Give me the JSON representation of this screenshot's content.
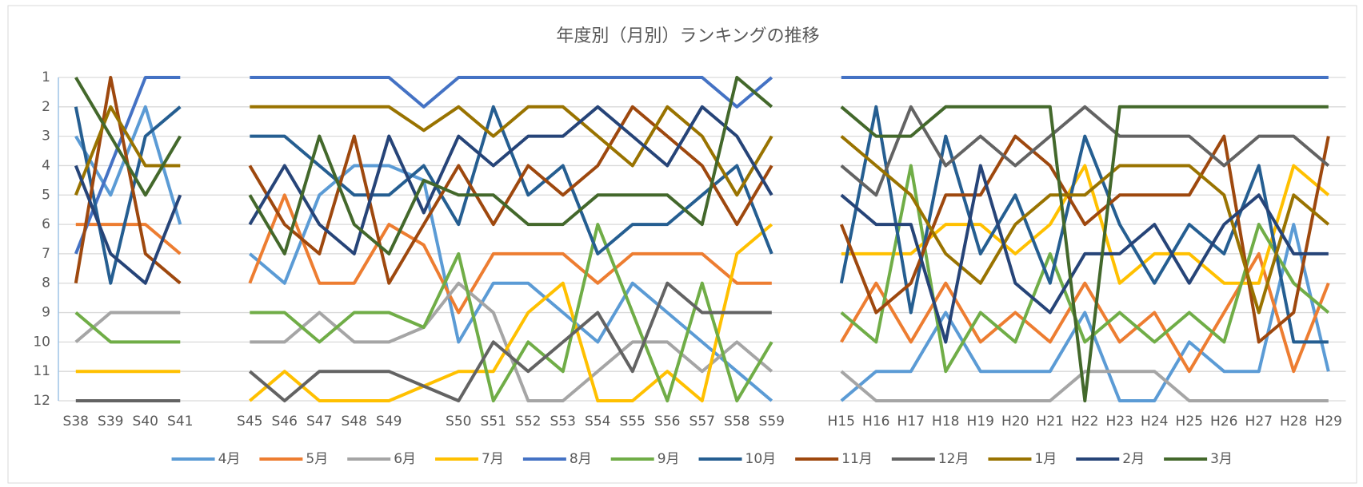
{
  "chart_data": {
    "type": "line",
    "title": "年度別（月別）ランキングの推移",
    "categories": [
      "S38",
      "S39",
      "S40",
      "S41",
      null,
      "S45",
      "S46",
      "S47",
      "S48",
      "S49",
      null,
      "S50",
      "S51",
      "S52",
      "S53",
      "S54",
      "S55",
      "S56",
      "S57",
      "S58",
      "S59",
      null,
      "H15",
      "H16",
      "H17",
      "H18",
      "H19",
      "H20",
      "H21",
      "H22",
      "H23",
      "H24",
      "H25",
      "H26",
      "H27",
      "H28",
      "H29"
    ],
    "ylim": [
      1,
      12
    ],
    "y_reversed": true,
    "yticks": [
      1,
      2,
      3,
      4,
      5,
      6,
      7,
      8,
      9,
      10,
      11,
      12
    ],
    "grid": true,
    "legend": "bottom",
    "series": [
      {
        "name": "4月",
        "color": "#5b9bd5",
        "values": [
          3,
          5,
          2,
          6,
          null,
          7,
          8,
          5,
          4,
          4,
          4.5,
          10,
          8,
          8,
          9,
          10,
          8,
          9,
          10,
          11,
          12,
          null,
          12,
          11,
          11,
          9,
          11,
          11,
          11,
          9,
          12,
          12,
          10,
          11,
          11,
          6,
          11
        ]
      },
      {
        "name": "5月",
        "color": "#ed7d31",
        "values": [
          6,
          6,
          6,
          7,
          null,
          8,
          5,
          8,
          8,
          6,
          6.7,
          9,
          7,
          7,
          7,
          8,
          7,
          7,
          7,
          8,
          8,
          null,
          10,
          8,
          10,
          8,
          10,
          9,
          10,
          8,
          10,
          9,
          11,
          9,
          7,
          11,
          8
        ]
      },
      {
        "name": "6月",
        "color": "#a5a5a5",
        "values": [
          10,
          9,
          9,
          9,
          null,
          10,
          10,
          9,
          10,
          10,
          9.5,
          8,
          9,
          12,
          12,
          11,
          10,
          10,
          11,
          10,
          11,
          null,
          11,
          12,
          12,
          12,
          12,
          12,
          12,
          11,
          11,
          11,
          12,
          12,
          12,
          12,
          12
        ]
      },
      {
        "name": "7月",
        "color": "#ffc000",
        "values": [
          11,
          11,
          11,
          11,
          null,
          12,
          11,
          12,
          12,
          12,
          11.5,
          11,
          11,
          9,
          8,
          12,
          12,
          11,
          12,
          7,
          6,
          null,
          7,
          7,
          7,
          6,
          6,
          7,
          6,
          4,
          8,
          7,
          7,
          8,
          8,
          4,
          5
        ]
      },
      {
        "name": "8月",
        "color": "#4472c4",
        "values": [
          7,
          4,
          1,
          1,
          null,
          1,
          1,
          1,
          1,
          1,
          2,
          1,
          1,
          1,
          1,
          1,
          1,
          1,
          1,
          2,
          1,
          null,
          1,
          1,
          1,
          1,
          1,
          1,
          1,
          1,
          1,
          1,
          1,
          1,
          1,
          1,
          1
        ]
      },
      {
        "name": "9月",
        "color": "#70ad47",
        "values": [
          9,
          10,
          10,
          10,
          null,
          9,
          9,
          10,
          9,
          9,
          9.5,
          7,
          12,
          10,
          11,
          6,
          9,
          12,
          8,
          12,
          10,
          null,
          9,
          10,
          4,
          11,
          9,
          10,
          7,
          10,
          9,
          10,
          9,
          10,
          6,
          8,
          9
        ]
      },
      {
        "name": "10月",
        "color": "#255e91",
        "values": [
          2,
          8,
          3,
          2,
          null,
          3,
          3,
          4,
          5,
          5,
          4,
          6,
          2,
          5,
          4,
          7,
          6,
          6,
          5,
          4,
          7,
          null,
          8,
          2,
          9,
          3,
          7,
          5,
          8,
          3,
          6,
          8,
          6,
          7,
          4,
          10,
          10
        ]
      },
      {
        "name": "11月",
        "color": "#9e480e",
        "values": [
          8,
          1,
          7,
          8,
          null,
          4,
          6,
          7,
          3,
          8,
          6,
          4,
          6,
          4,
          5,
          4,
          2,
          3,
          4,
          6,
          4,
          null,
          6,
          9,
          8,
          5,
          5,
          3,
          4,
          6,
          5,
          5,
          5,
          3,
          10,
          9,
          3
        ]
      },
      {
        "name": "12月",
        "color": "#636363",
        "values": [
          12,
          12,
          12,
          12,
          null,
          11,
          12,
          11,
          11,
          11,
          11.5,
          12,
          10,
          11,
          10,
          9,
          11,
          8,
          9,
          9,
          9,
          null,
          4,
          5,
          2,
          4,
          3,
          4,
          3,
          2,
          3,
          3,
          3,
          4,
          3,
          3,
          4
        ]
      },
      {
        "name": "1月",
        "color": "#997300",
        "values": [
          5,
          2,
          4,
          4,
          null,
          2,
          2,
          2,
          2,
          2,
          2.8,
          2,
          3,
          2,
          2,
          3,
          4,
          2,
          3,
          5,
          3,
          null,
          3,
          4,
          5,
          7,
          8,
          6,
          5,
          5,
          4,
          4,
          4,
          5,
          9,
          5,
          6
        ]
      },
      {
        "name": "2月",
        "color": "#264478",
        "values": [
          4,
          7,
          8,
          5,
          null,
          6,
          4,
          6,
          7,
          3,
          5.6,
          3,
          4,
          3,
          3,
          2,
          3,
          4,
          2,
          3,
          5,
          null,
          5,
          6,
          6,
          10,
          4,
          8,
          9,
          7,
          7,
          6,
          8,
          6,
          5,
          7,
          7
        ]
      },
      {
        "name": "3月",
        "color": "#43682b",
        "values": [
          1,
          3,
          5,
          3,
          null,
          5,
          7,
          3,
          6,
          7,
          4.5,
          5,
          5,
          6,
          6,
          5,
          5,
          5,
          6,
          1,
          2,
          null,
          2,
          3,
          3,
          2,
          2,
          2,
          2,
          12,
          2,
          2,
          2,
          2,
          2,
          2,
          2
        ]
      }
    ]
  }
}
